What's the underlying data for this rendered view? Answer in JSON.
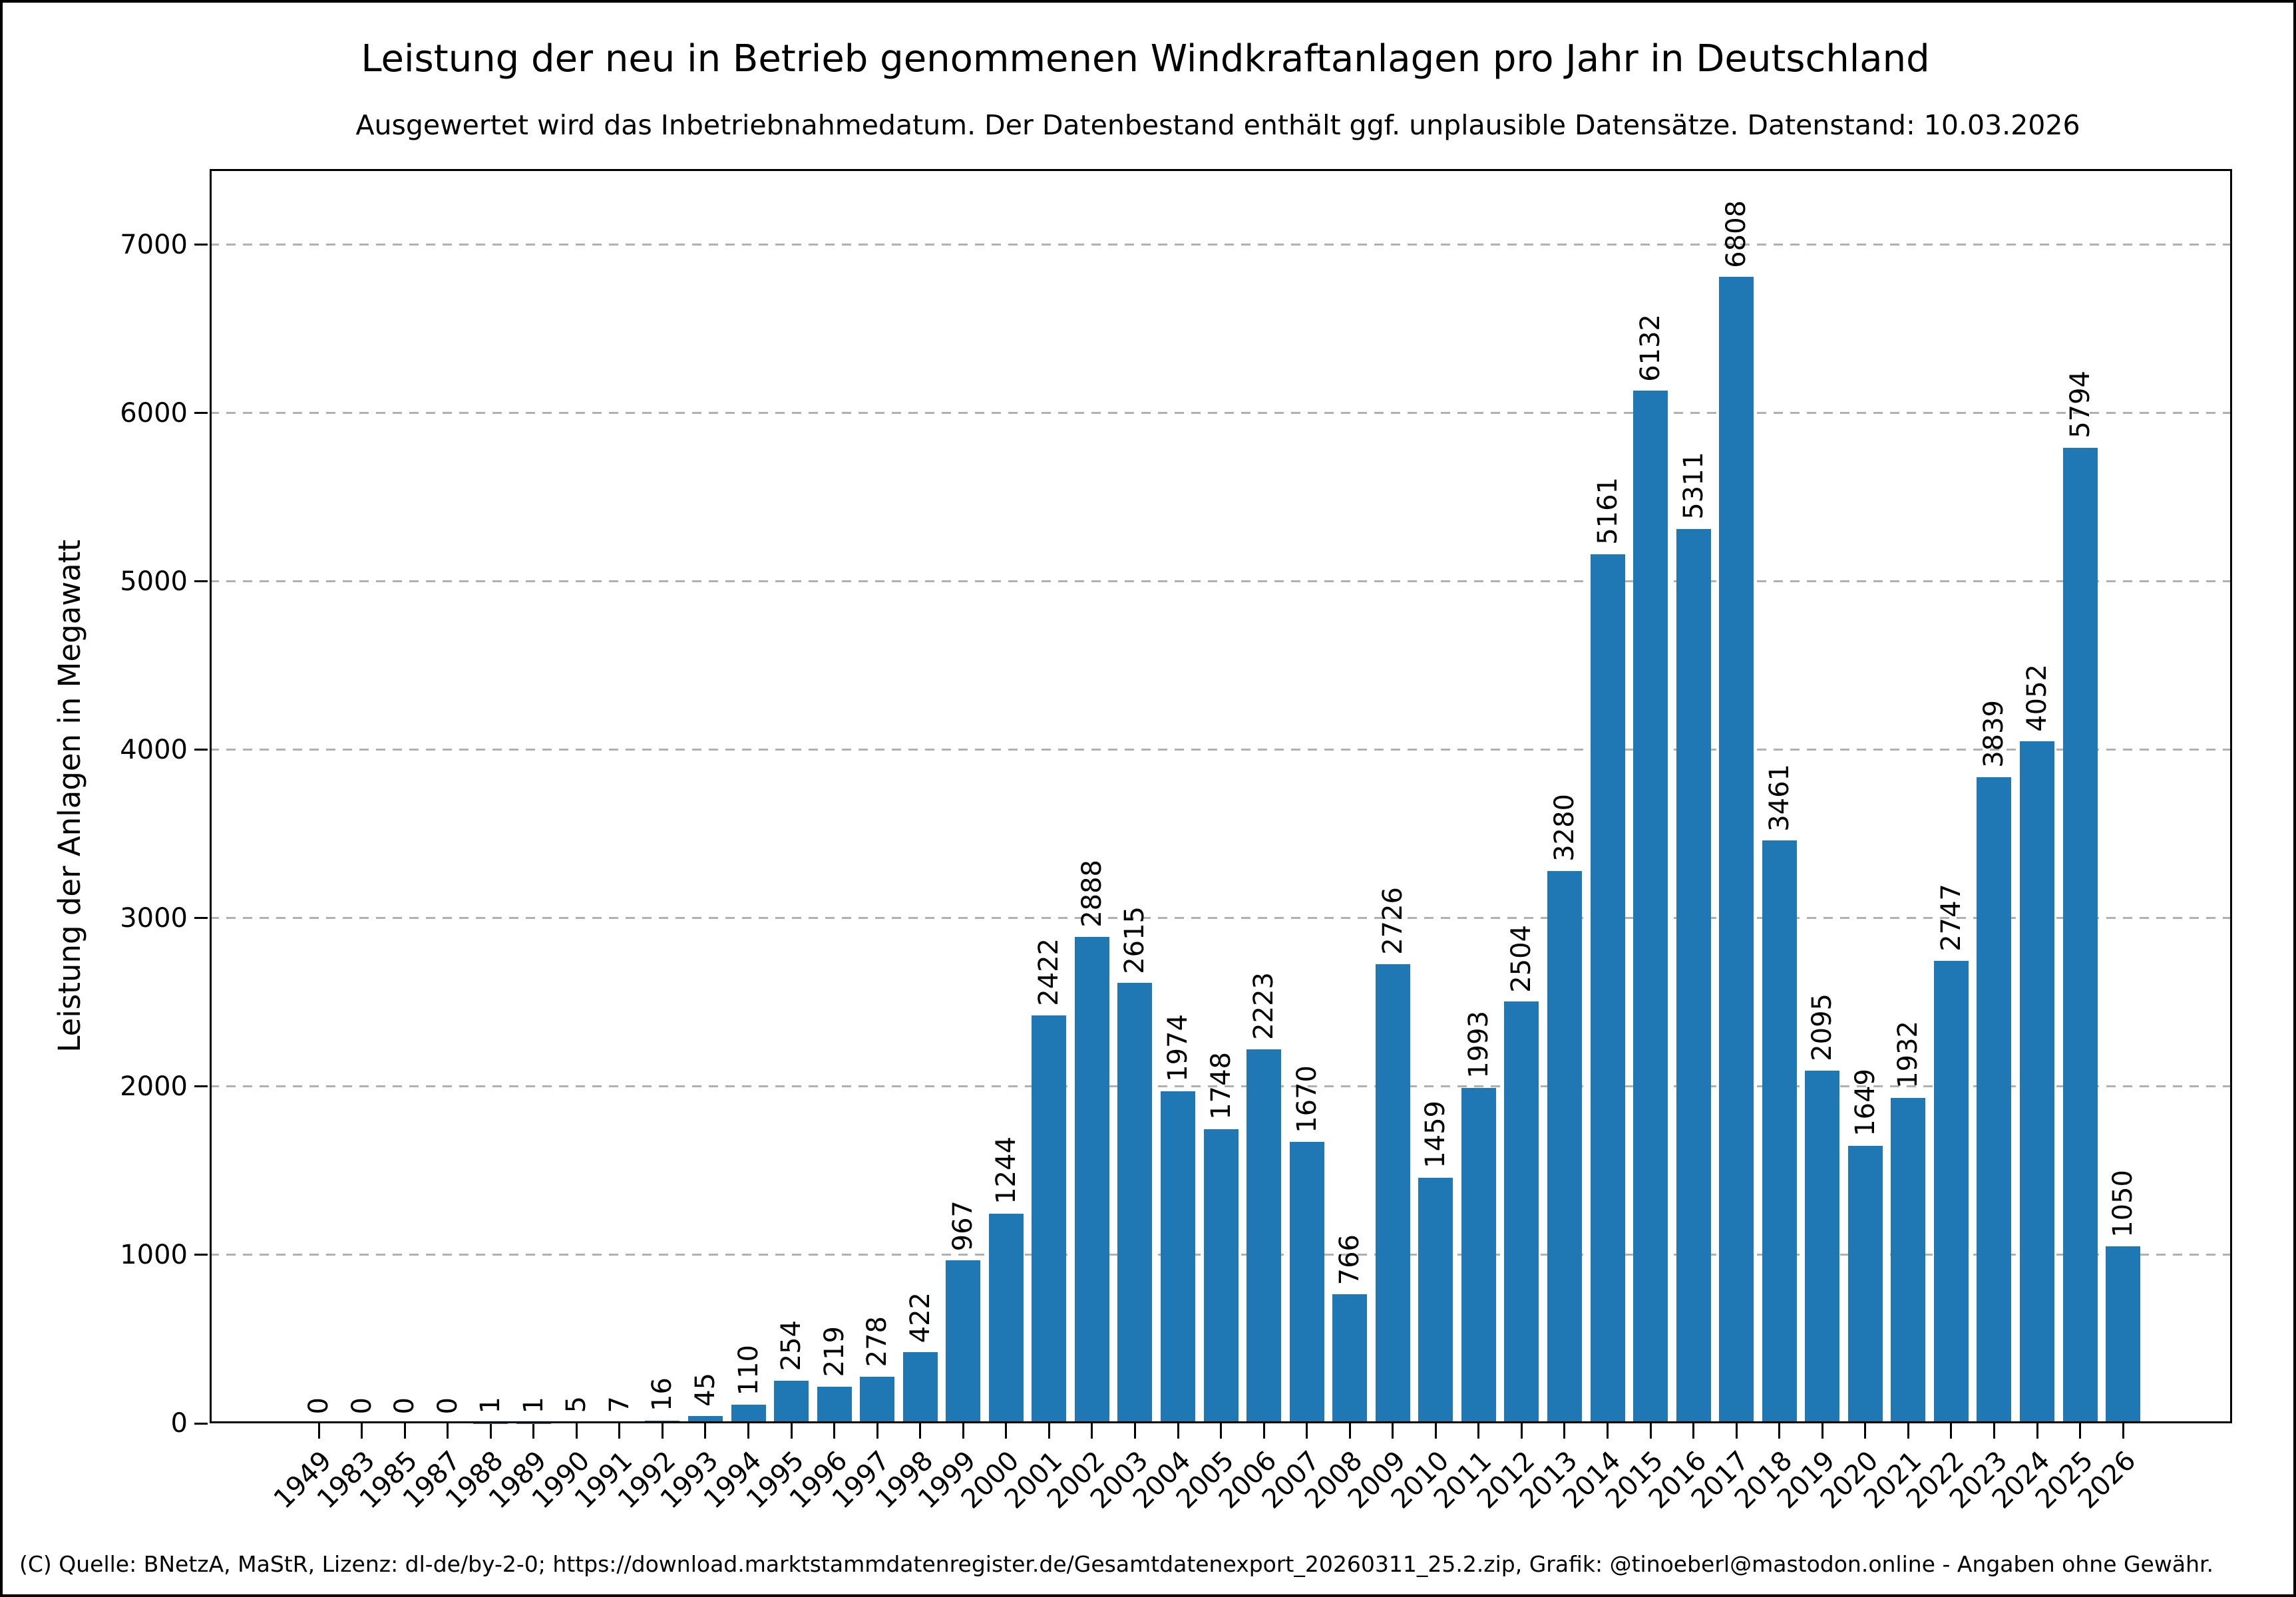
{
  "chart_data": {
    "type": "bar",
    "title": "Leistung der neu in Betrieb genommenen Windkraftanlagen pro Jahr in Deutschland",
    "subtitle": "Ausgewertet wird das Inbetriebnahmedatum. Der Datenbestand enthält ggf. unplausible Datensätze. Datenstand: 10.03.2026",
    "categories": [
      "1949",
      "1983",
      "1985",
      "1987",
      "1988",
      "1989",
      "1990",
      "1991",
      "1992",
      "1993",
      "1994",
      "1995",
      "1996",
      "1997",
      "1998",
      "1999",
      "2000",
      "2001",
      "2002",
      "2003",
      "2004",
      "2005",
      "2006",
      "2007",
      "2008",
      "2009",
      "2010",
      "2011",
      "2012",
      "2013",
      "2014",
      "2015",
      "2016",
      "2017",
      "2018",
      "2019",
      "2020",
      "2021",
      "2022",
      "2023",
      "2024",
      "2025",
      "2026"
    ],
    "values": [
      0,
      0,
      0,
      0,
      1,
      1,
      5,
      7,
      16,
      45,
      110,
      254,
      219,
      278,
      422,
      967,
      1244,
      2422,
      2888,
      2615,
      1974,
      1748,
      2223,
      1670,
      766,
      2726,
      1459,
      1993,
      2504,
      3280,
      5161,
      6132,
      5311,
      6808,
      3461,
      2095,
      1649,
      1932,
      2747,
      3839,
      4052,
      5794,
      1050
    ],
    "xlabel": "",
    "ylabel": "Leistung der Anlagen in Megawatt",
    "yticks": [
      0,
      1000,
      2000,
      3000,
      4000,
      5000,
      6000,
      7000
    ],
    "ylim": [
      0,
      7450
    ],
    "grid": "horizontal-dashed",
    "legend": "none",
    "bar_color": "#1f77b4",
    "grid_color": "#b0b0b0",
    "value_label_rotation": 90,
    "x_tick_rotation": 45,
    "footer": "(C) Quelle: BNetzA, MaStR, Lizenz: dl-de/by-2-0; https://download.marktstammdatenregister.de/Gesamtdatenexport_20260311_25.2.zip, Grafik: @tinoeberl@mastodon.online - Angaben ohne Gewähr."
  }
}
